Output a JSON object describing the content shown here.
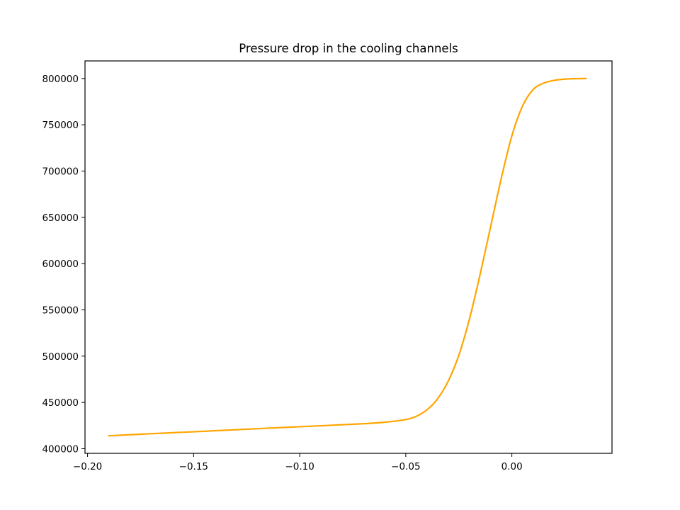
{
  "chart_data": {
    "type": "line",
    "title": "Pressure drop in the cooling channels",
    "xlabel": "",
    "ylabel": "",
    "xlim": [
      -0.2012,
      0.0472
    ],
    "ylim": [
      395000,
      819000
    ],
    "x_ticks": [
      -0.2,
      -0.15,
      -0.1,
      -0.05,
      0.0
    ],
    "x_tick_labels": [
      "−0.20",
      "−0.15",
      "−0.10",
      "−0.05",
      "0.00"
    ],
    "y_ticks": [
      400000,
      450000,
      500000,
      550000,
      600000,
      650000,
      700000,
      750000,
      800000
    ],
    "y_tick_labels": [
      "400000",
      "450000",
      "500000",
      "550000",
      "600000",
      "650000",
      "700000",
      "750000",
      "800000"
    ],
    "grid": false,
    "series": [
      {
        "color": "#ffa500",
        "x": [
          -0.19,
          -0.17,
          -0.15,
          -0.13,
          -0.11,
          -0.09,
          -0.07,
          -0.06,
          -0.05,
          -0.045,
          -0.04,
          -0.035,
          -0.03,
          -0.025,
          -0.02,
          -0.015,
          -0.01,
          -0.005,
          0.0,
          0.005,
          0.01,
          0.015,
          0.02,
          0.025,
          0.03,
          0.035
        ],
        "y": [
          414000,
          416200,
          418300,
          420500,
          422700,
          424800,
          427000,
          428600,
          431500,
          435000,
          442000,
          454000,
          473000,
          501000,
          540000,
          588000,
          640000,
          692000,
          738000,
          770000,
          788000,
          795000,
          798000,
          799300,
          799800,
          800000
        ]
      }
    ]
  }
}
